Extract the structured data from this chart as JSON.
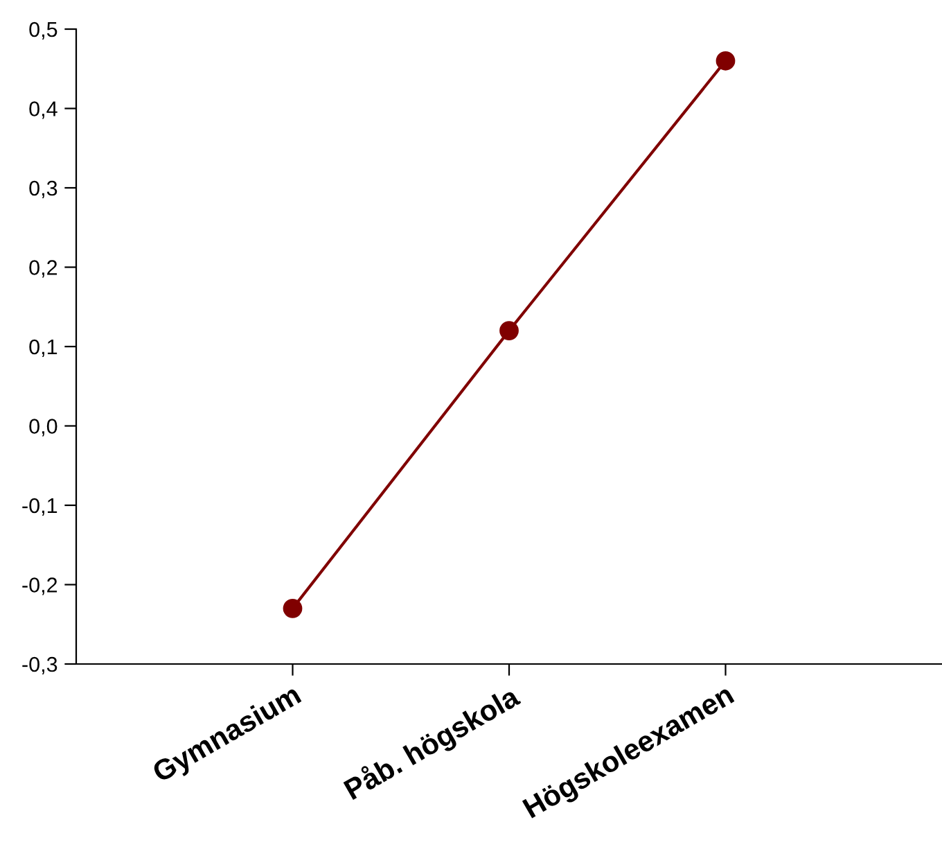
{
  "chart_data": {
    "type": "line",
    "categories": [
      "Gymnasium",
      "Påb. högskola",
      "Högskoleexamen"
    ],
    "series": [
      {
        "color": "#800000",
        "values": [
          -0.23,
          0.12,
          0.46
        ]
      }
    ],
    "ylim": [
      -0.3,
      0.5
    ],
    "yticks": [
      {
        "value": -0.3,
        "label": "-0,3"
      },
      {
        "value": -0.2,
        "label": "-0,2"
      },
      {
        "value": -0.1,
        "label": "-0,1"
      },
      {
        "value": 0.0,
        "label": "0,0"
      },
      {
        "value": 0.1,
        "label": "0,1"
      },
      {
        "value": 0.2,
        "label": "0,2"
      },
      {
        "value": 0.3,
        "label": "0,3"
      },
      {
        "value": 0.4,
        "label": "0,4"
      },
      {
        "value": 0.5,
        "label": "0,5"
      }
    ],
    "marker": "circle",
    "line_style": "solid",
    "grid": false,
    "legend": false
  }
}
